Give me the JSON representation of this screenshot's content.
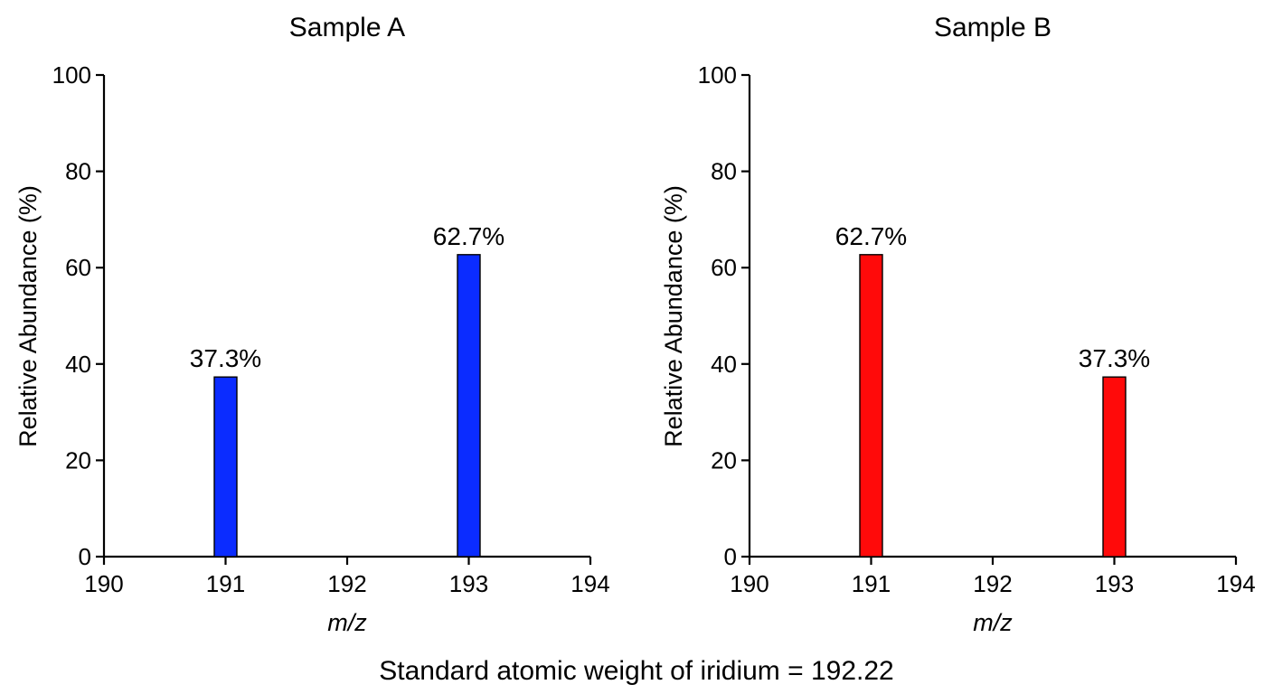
{
  "footer_note": "Standard atomic weight of iridium = 192.22",
  "chart_data": [
    {
      "type": "bar",
      "title": "Sample A",
      "xlabel": "m/z",
      "ylabel": "Relative Abundance (%)",
      "xlim": [
        190,
        194
      ],
      "ylim": [
        0,
        100
      ],
      "xticks": [
        190,
        191,
        192,
        193,
        194
      ],
      "yticks": [
        0,
        20,
        40,
        60,
        80,
        100
      ],
      "x": [
        191,
        193
      ],
      "values": [
        37.3,
        62.7
      ],
      "data_labels": [
        "37.3%",
        "62.7%"
      ],
      "color": "#0b2cff",
      "grid": false
    },
    {
      "type": "bar",
      "title": "Sample B",
      "xlabel": "m/z",
      "ylabel": "Relative Abundance (%)",
      "xlim": [
        190,
        194
      ],
      "ylim": [
        0,
        100
      ],
      "xticks": [
        190,
        191,
        192,
        193,
        194
      ],
      "yticks": [
        0,
        20,
        40,
        60,
        80,
        100
      ],
      "x": [
        191,
        193
      ],
      "values": [
        62.7,
        37.3
      ],
      "data_labels": [
        "62.7%",
        "37.3%"
      ],
      "color": "#ff0a0a",
      "grid": false
    }
  ]
}
